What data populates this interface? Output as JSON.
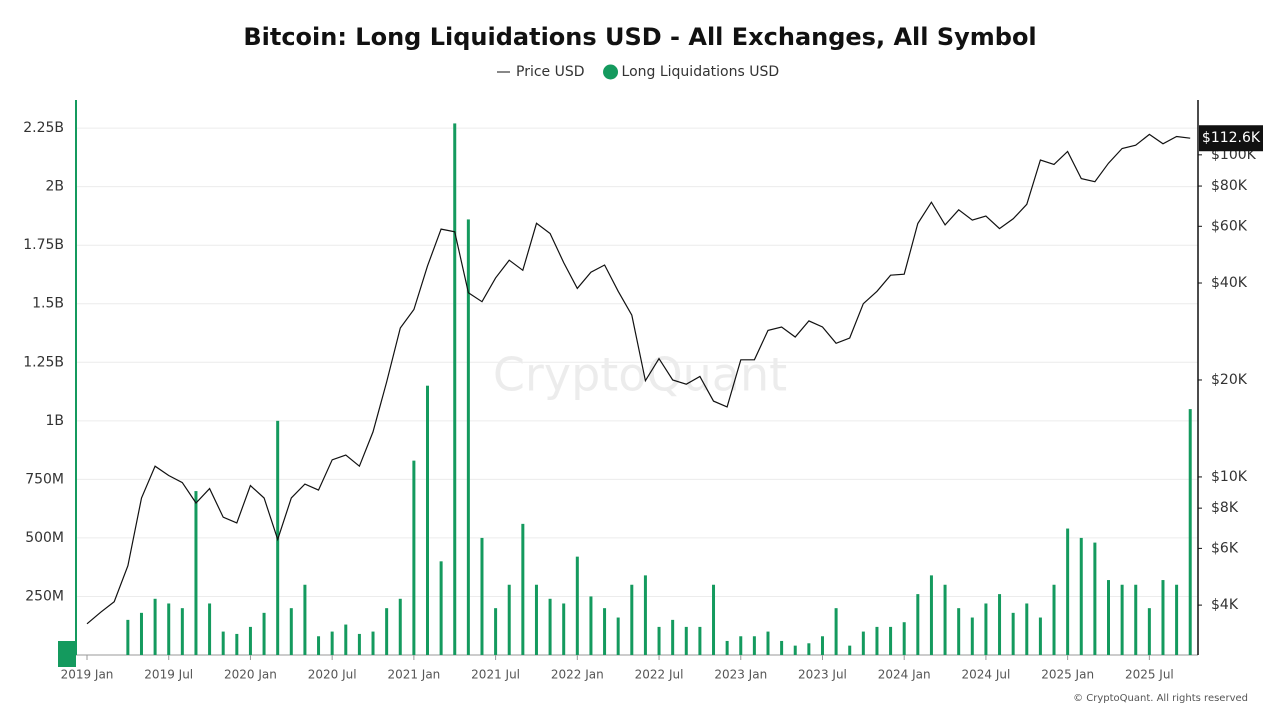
{
  "chart_data": {
    "type": "bar-line",
    "title": "Bitcoin: Long Liquidations USD - All Exchanges, All Symbol",
    "watermark": "CryptoQuant",
    "credit": "© CryptoQuant. All rights reserved",
    "x": [
      "2019-01",
      "2019-02",
      "2019-03",
      "2019-04",
      "2019-05",
      "2019-06",
      "2019-07",
      "2019-08",
      "2019-09",
      "2019-10",
      "2019-11",
      "2019-12",
      "2020-01",
      "2020-02",
      "2020-03",
      "2020-04",
      "2020-05",
      "2020-06",
      "2020-07",
      "2020-08",
      "2020-09",
      "2020-10",
      "2020-11",
      "2020-12",
      "2021-01",
      "2021-02",
      "2021-03",
      "2021-04",
      "2021-05",
      "2021-06",
      "2021-07",
      "2021-08",
      "2021-09",
      "2021-10",
      "2021-11",
      "2021-12",
      "2022-01",
      "2022-02",
      "2022-03",
      "2022-04",
      "2022-05",
      "2022-06",
      "2022-07",
      "2022-08",
      "2022-09",
      "2022-10",
      "2022-11",
      "2022-12",
      "2023-01",
      "2023-02",
      "2023-03",
      "2023-04",
      "2023-05",
      "2023-06",
      "2023-07",
      "2023-08",
      "2023-09",
      "2023-10",
      "2023-11",
      "2023-12",
      "2024-01",
      "2024-02",
      "2024-03",
      "2024-04",
      "2024-05",
      "2024-06",
      "2024-07",
      "2024-08",
      "2024-09",
      "2024-10",
      "2024-11",
      "2024-12",
      "2025-01",
      "2025-02",
      "2025-03",
      "2025-04",
      "2025-05",
      "2025-06",
      "2025-07",
      "2025-08",
      "2025-09",
      "2025-10"
    ],
    "series": [
      {
        "name": "Long Liquidations USD",
        "kind": "bar",
        "axis": "y",
        "color": "#149a5e",
        "values": [
          0,
          0,
          0,
          150000000,
          180000000,
          240000000,
          220000000,
          200000000,
          700000000,
          220000000,
          100000000,
          90000000,
          120000000,
          180000000,
          1000000000,
          200000000,
          300000000,
          80000000,
          100000000,
          130000000,
          90000000,
          100000000,
          200000000,
          240000000,
          830000000,
          1150000000,
          400000000,
          2270000000,
          1860000000,
          500000000,
          200000000,
          300000000,
          560000000,
          300000000,
          240000000,
          220000000,
          420000000,
          250000000,
          200000000,
          160000000,
          300000000,
          340000000,
          120000000,
          150000000,
          120000000,
          120000000,
          300000000,
          60000000,
          80000000,
          80000000,
          100000000,
          60000000,
          40000000,
          50000000,
          80000000,
          200000000,
          40000000,
          100000000,
          120000000,
          120000000,
          140000000,
          260000000,
          340000000,
          300000000,
          200000000,
          160000000,
          220000000,
          260000000,
          180000000,
          220000000,
          160000000,
          300000000,
          540000000,
          500000000,
          480000000,
          320000000,
          300000000,
          300000000,
          200000000,
          320000000,
          300000000,
          1050000000
        ]
      },
      {
        "name": "Price USD",
        "kind": "line",
        "axis": "y2",
        "color": "#111111",
        "values": [
          3500,
          3800,
          4100,
          5300,
          8600,
          10800,
          10100,
          9600,
          8300,
          9200,
          7500,
          7200,
          9400,
          8600,
          6400,
          8600,
          9500,
          9100,
          11300,
          11700,
          10800,
          13800,
          19700,
          29000,
          33100,
          45200,
          58800,
          57700,
          37300,
          35000,
          41500,
          47100,
          43800,
          61300,
          57000,
          46300,
          38500,
          43200,
          45500,
          37700,
          31800,
          19900,
          23300,
          20000,
          19400,
          20500,
          17200,
          16500,
          23100,
          23100,
          28500,
          29200,
          27200,
          30500,
          29200,
          26000,
          27000,
          34500,
          37700,
          42300,
          42600,
          61200,
          71300,
          60600,
          67500,
          62700,
          64600,
          59000,
          63300,
          70200,
          96400,
          93400,
          102400,
          84400,
          82500,
          94200,
          104600,
          107100,
          115700,
          108200,
          114000,
          112600
        ],
        "value_labels": [
          null,
          null,
          null,
          null,
          null,
          null,
          null,
          null,
          null,
          null,
          null,
          null,
          null,
          null,
          null,
          null,
          null,
          null,
          null,
          null,
          null,
          null,
          null,
          null,
          null,
          null,
          null,
          null,
          null,
          null,
          null,
          null,
          null,
          null,
          null,
          null,
          null,
          null,
          null,
          null,
          null,
          null,
          null,
          null,
          null,
          null,
          null,
          null,
          null,
          null,
          null,
          null,
          null,
          null,
          null,
          null,
          null,
          null,
          null,
          null,
          null,
          null,
          null,
          null,
          null,
          null,
          null,
          null,
          null,
          null,
          null,
          null,
          null,
          null,
          null,
          null,
          null,
          null,
          null,
          null,
          null,
          "$112.6K"
        ]
      }
    ],
    "ylim": [
      0,
      2370000000
    ],
    "yticks": [
      0,
      {
        "value": 250000000,
        "label": "250M"
      },
      {
        "value": 500000000,
        "label": "500M"
      },
      {
        "value": 750000000,
        "label": "750M"
      },
      {
        "value": 1000000000,
        "label": "1B"
      },
      {
        "value": 1250000000,
        "label": "1.25B"
      },
      {
        "value": 1500000000,
        "label": "1.5B"
      },
      {
        "value": 1750000000,
        "label": "1.75B"
      },
      {
        "value": 2000000000,
        "label": "2B"
      },
      {
        "value": 2250000000,
        "label": "2.25B"
      }
    ],
    "y2lim": [
      2800,
      148000
    ],
    "y2log": true,
    "y2ticks": [
      {
        "value": 4000,
        "label": "$4K"
      },
      {
        "value": 6000,
        "label": "$6K"
      },
      {
        "value": 8000,
        "label": "$8K"
      },
      {
        "value": 10000,
        "label": "$10K"
      },
      {
        "value": 20000,
        "label": "$20K"
      },
      {
        "value": 40000,
        "label": "$40K"
      },
      {
        "value": 60000,
        "label": "$60K"
      },
      {
        "value": 80000,
        "label": "$80K"
      },
      {
        "value": 100000,
        "label": "$100K"
      }
    ],
    "xticks": [
      {
        "value": "2019-01",
        "label": "2019 Jan"
      },
      {
        "value": "2019-07",
        "label": "2019 Jul"
      },
      {
        "value": "2020-01",
        "label": "2020 Jan"
      },
      {
        "value": "2020-07",
        "label": "2020 Jul"
      },
      {
        "value": "2021-01",
        "label": "2021 Jan"
      },
      {
        "value": "2021-07",
        "label": "2021 Jul"
      },
      {
        "value": "2022-01",
        "label": "2022 Jan"
      },
      {
        "value": "2022-07",
        "label": "2022 Jul"
      },
      {
        "value": "2023-01",
        "label": "2023 Jan"
      },
      {
        "value": "2023-07",
        "label": "2023 Jul"
      },
      {
        "value": "2024-01",
        "label": "2024 Jan"
      },
      {
        "value": "2024-07",
        "label": "2024 Jul"
      },
      {
        "value": "2025-01",
        "label": "2025 Jan"
      },
      {
        "value": "2025-07",
        "label": "2025 Jul"
      }
    ],
    "grid": true
  }
}
